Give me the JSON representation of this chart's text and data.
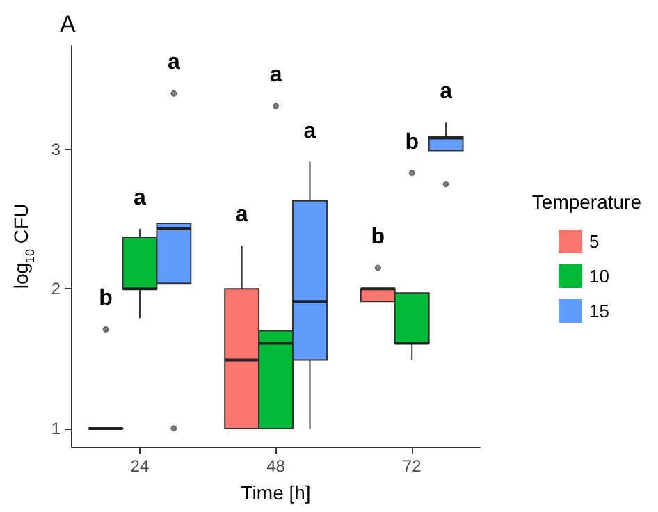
{
  "chart_data": {
    "type": "box",
    "title": "A",
    "xlabel": "Time [h]",
    "ylabel": "log$_{10}$ CFU",
    "legend_title": "Temperature",
    "legend": "right",
    "grid": false,
    "categories": [
      "24",
      "48",
      "72"
    ],
    "ylim": [
      0.87,
      3.74
    ],
    "yticks": [
      1,
      2,
      3
    ],
    "series": [
      {
        "name": "5",
        "color": "#f8766d",
        "boxes": [
          {
            "low": 1,
            "q1": 1,
            "median": 1,
            "q3": 1,
            "high": 1,
            "outliers": [
              1.71
            ]
          },
          {
            "low": 1,
            "q1": 1,
            "median": 1.49,
            "q3": 2,
            "high": 2.31
          },
          {
            "low": 1.91,
            "q1": 1.91,
            "median": 2,
            "q3": 2,
            "high": 2,
            "outliers": [
              2.15
            ]
          }
        ]
      },
      {
        "name": "10",
        "color": "#00ba38",
        "boxes": [
          {
            "low": 1.79,
            "q1": 2,
            "median": 2,
            "q3": 2.37,
            "high": 2.43
          },
          {
            "low": 1,
            "q1": 1,
            "median": 1.61,
            "q3": 1.7,
            "high": 1.7,
            "outliers": [
              3.31
            ]
          },
          {
            "low": 1.49,
            "q1": 1.61,
            "median": 1.61,
            "q3": 1.97,
            "high": 1.97,
            "outliers": [
              2.83
            ]
          }
        ]
      },
      {
        "name": "15",
        "color": "#619cff",
        "boxes": [
          {
            "low": 2.04,
            "q1": 2.04,
            "median": 2.43,
            "q3": 2.47,
            "high": 2.47,
            "outliers": [
              1.0,
              3.4
            ]
          },
          {
            "low": 1,
            "q1": 1.49,
            "median": 1.91,
            "q3": 2.63,
            "high": 2.91
          },
          {
            "low": 2.99,
            "q1": 2.99,
            "median": 3.08,
            "q3": 3.09,
            "high": 3.19,
            "outliers": [
              2.75
            ]
          }
        ]
      }
    ],
    "annotations": [
      "b",
      "a",
      "a",
      "a",
      "a",
      "a",
      "b",
      "b",
      "a"
    ]
  }
}
